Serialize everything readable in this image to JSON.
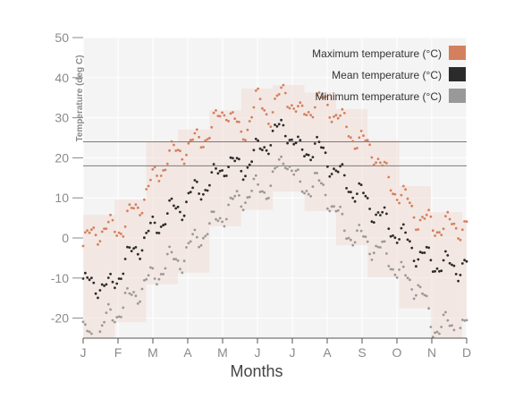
{
  "chart_data": {
    "type": "scatter",
    "title": "",
    "xlabel": "Months",
    "ylabel": "Temperature (deg C)",
    "ylim": [
      -25,
      50
    ],
    "yticks": [
      -20,
      -10,
      0,
      10,
      20,
      30,
      40,
      50
    ],
    "x_tick_labels": [
      "J",
      "F",
      "M",
      "A",
      "M",
      "J",
      "J",
      "A",
      "S",
      "O",
      "N",
      "D"
    ],
    "reference_lines": [
      24,
      18
    ],
    "legend_position": "top-right",
    "series": [
      {
        "name": "Maximum temperature (°C)",
        "color": "#d4805e",
        "anchors": [
          [
            0,
            -2
          ],
          [
            12,
            2
          ],
          [
            24,
            2
          ],
          [
            38,
            3
          ],
          [
            52,
            8
          ],
          [
            66,
            14
          ],
          [
            80,
            20
          ],
          [
            94,
            22
          ],
          [
            108,
            24
          ],
          [
            122,
            27
          ],
          [
            136,
            33
          ],
          [
            150,
            25
          ],
          [
            164,
            34
          ],
          [
            178,
            31
          ],
          [
            192,
            37
          ],
          [
            206,
            30
          ],
          [
            220,
            34
          ],
          [
            234,
            33
          ],
          [
            248,
            28
          ],
          [
            262,
            24
          ],
          [
            276,
            22
          ],
          [
            290,
            14
          ],
          [
            304,
            10
          ],
          [
            318,
            5
          ],
          [
            332,
            3
          ],
          [
            346,
            3
          ],
          [
            364,
            3
          ]
        ]
      },
      {
        "name": "Mean temperature (°C)",
        "color": "#2b2b2b",
        "anchors": [
          [
            0,
            -12
          ],
          [
            12,
            -11
          ],
          [
            24,
            -13
          ],
          [
            38,
            -7
          ],
          [
            52,
            -2
          ],
          [
            66,
            2
          ],
          [
            80,
            6
          ],
          [
            94,
            8
          ],
          [
            108,
            12
          ],
          [
            122,
            14
          ],
          [
            136,
            19
          ],
          [
            150,
            17
          ],
          [
            164,
            21
          ],
          [
            178,
            25
          ],
          [
            192,
            28
          ],
          [
            206,
            21
          ],
          [
            220,
            23
          ],
          [
            234,
            19
          ],
          [
            248,
            14
          ],
          [
            262,
            11
          ],
          [
            276,
            7
          ],
          [
            290,
            3
          ],
          [
            304,
            0
          ],
          [
            318,
            -4
          ],
          [
            332,
            -6
          ],
          [
            346,
            -7
          ],
          [
            364,
            -7
          ]
        ]
      },
      {
        "name": "Minimum temperature (°C)",
        "color": "#999999",
        "anchors": [
          [
            0,
            -24
          ],
          [
            12,
            -25
          ],
          [
            24,
            -20
          ],
          [
            38,
            -17
          ],
          [
            52,
            -13
          ],
          [
            66,
            -10
          ],
          [
            80,
            -6
          ],
          [
            94,
            -5
          ],
          [
            108,
            0
          ],
          [
            122,
            3
          ],
          [
            136,
            7
          ],
          [
            150,
            10
          ],
          [
            164,
            12
          ],
          [
            178,
            13
          ],
          [
            192,
            21
          ],
          [
            206,
            12
          ],
          [
            220,
            14
          ],
          [
            234,
            10
          ],
          [
            248,
            2
          ],
          [
            262,
            0
          ],
          [
            276,
            -2
          ],
          [
            290,
            -5
          ],
          [
            304,
            -10
          ],
          [
            318,
            -12
          ],
          [
            332,
            -22
          ],
          [
            346,
            -22
          ],
          [
            364,
            -22
          ]
        ]
      }
    ]
  }
}
